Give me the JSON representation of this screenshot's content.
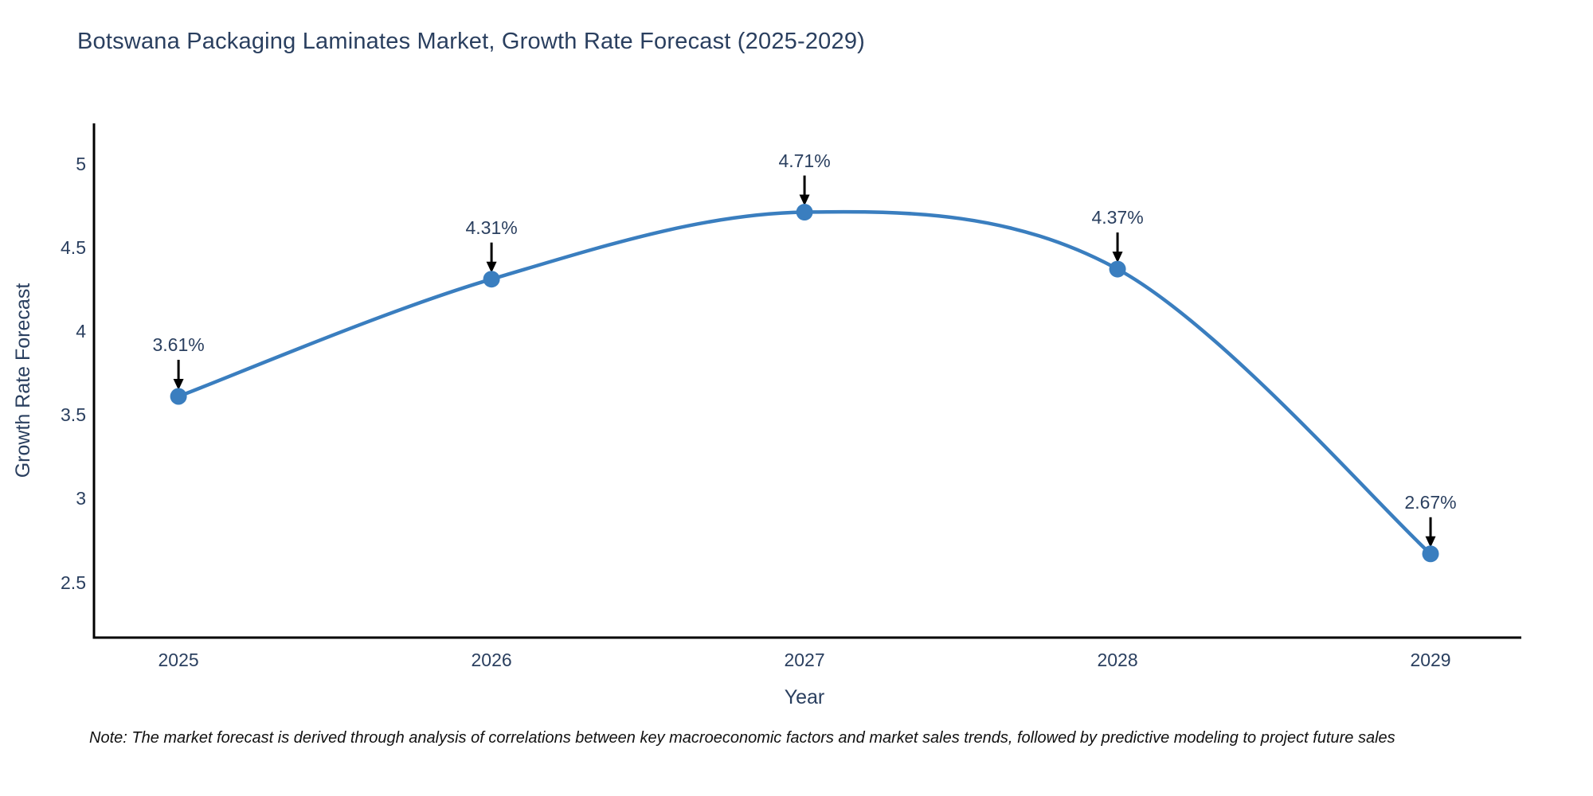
{
  "title": "Botswana Packaging Laminates Market, Growth Rate Forecast (2025-2029)",
  "note": "Note: The market forecast is derived through analysis of correlations between key macroeconomic factors and market sales trends, followed by predictive modeling to project future sales",
  "chart_data": {
    "type": "line",
    "title": "Botswana Packaging Laminates Market, Growth Rate Forecast (2025-2029)",
    "xlabel": "Year",
    "ylabel": "Growth Rate Forecast",
    "x": [
      2025,
      2026,
      2027,
      2028,
      2029
    ],
    "series": [
      {
        "name": "Growth Rate Forecast",
        "values": [
          3.61,
          4.31,
          4.71,
          4.37,
          2.67
        ]
      }
    ],
    "point_labels": [
      "3.61%",
      "4.31%",
      "4.71%",
      "4.37%",
      "2.67%"
    ],
    "x_ticks": [
      "2025",
      "2026",
      "2027",
      "2028",
      "2029"
    ],
    "y_ticks": [
      2.5,
      3,
      3.5,
      4,
      4.5,
      5
    ],
    "xlim": [
      2024.73,
      2029.29
    ],
    "ylim": [
      2.17,
      5.24
    ],
    "line_shape": "spline",
    "grid": false,
    "legend": "none",
    "colors": {
      "line": "#3a7ebf",
      "marker": "#3a7ebf",
      "axis": "#000000",
      "text": "#2a3f5f",
      "annotation_arrow": "#000000"
    }
  }
}
